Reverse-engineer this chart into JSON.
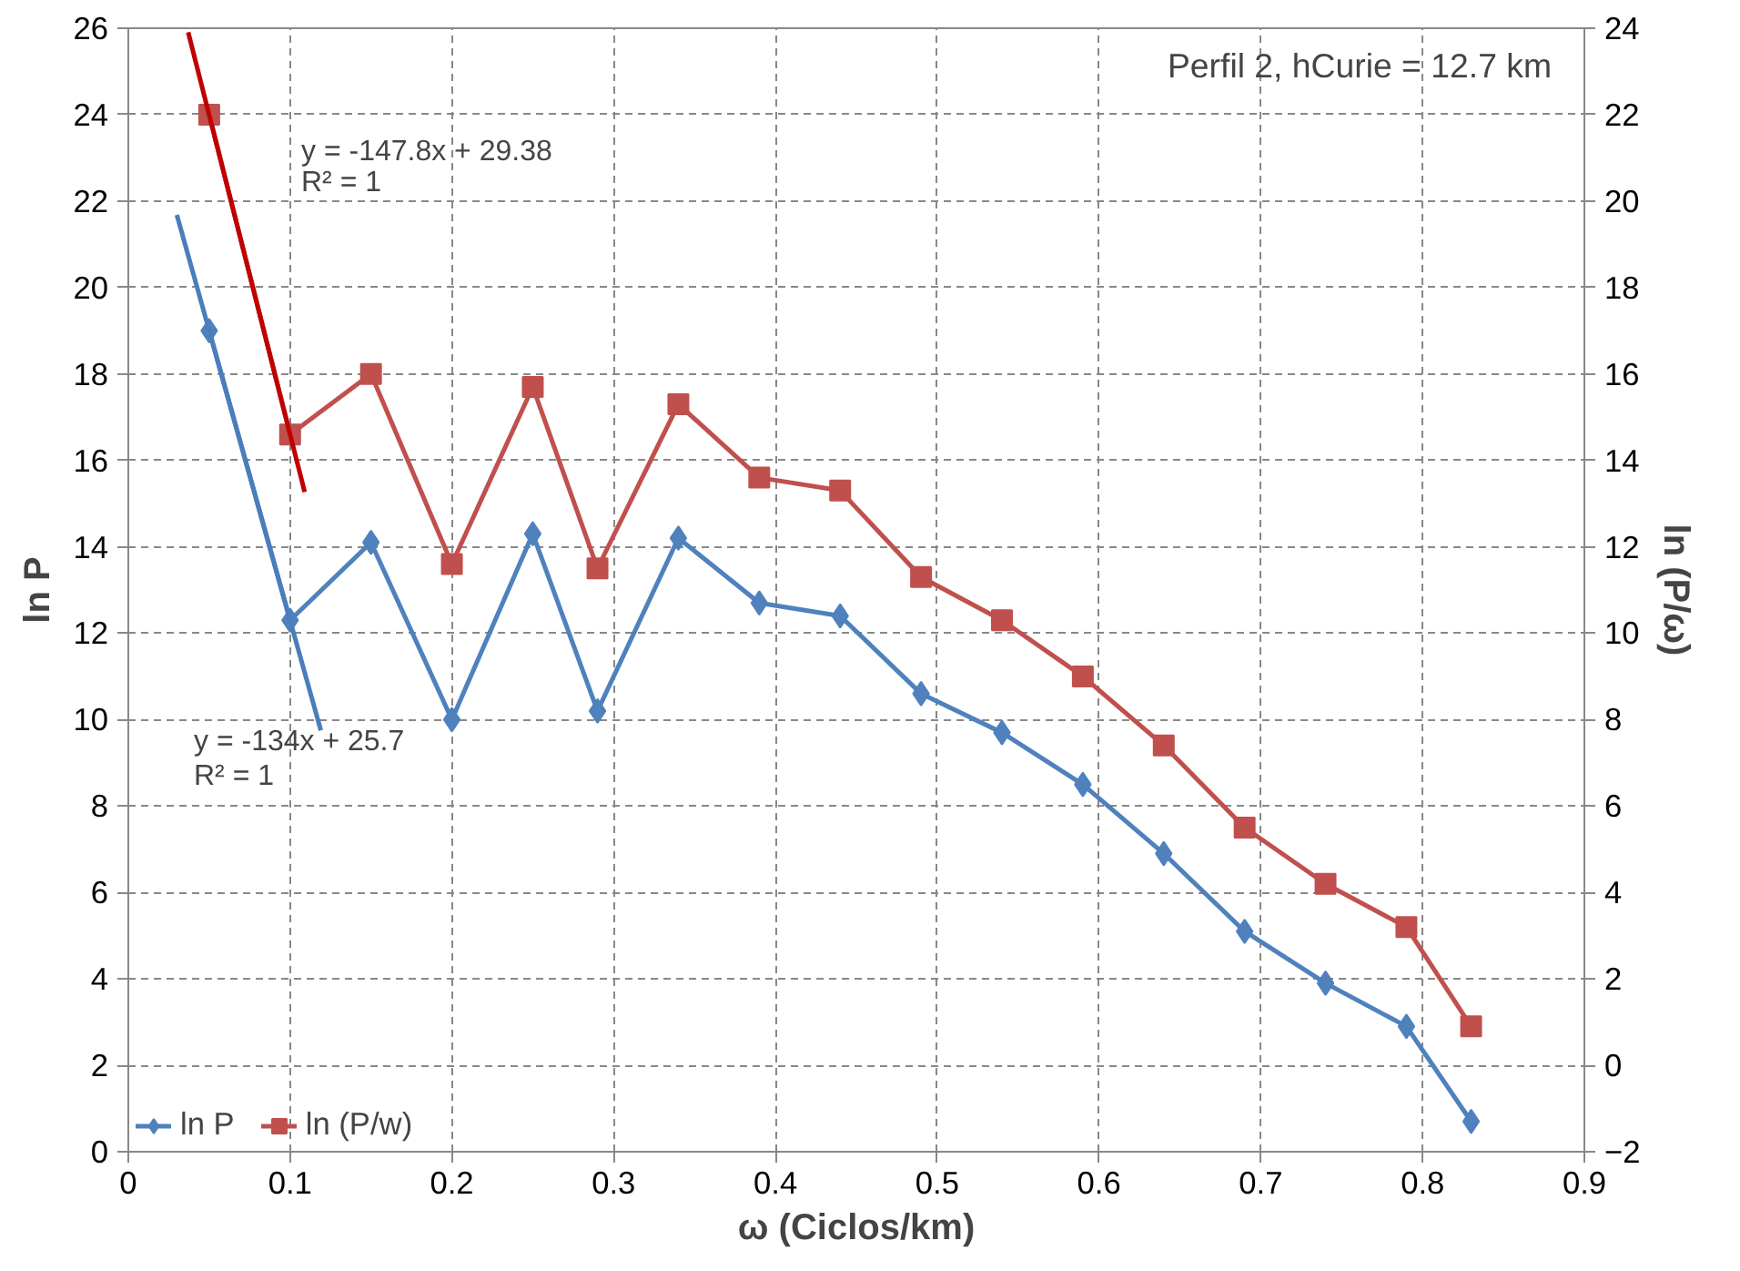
{
  "chart_data": {
    "type": "line",
    "xlabel": "ω (Ciclos/km)",
    "ylabel": "ln P",
    "y2label": "ln (P/ω)",
    "x": [
      0.05,
      0.1,
      0.15,
      0.2,
      0.25,
      0.29,
      0.34,
      0.39,
      0.44,
      0.49,
      0.54,
      0.59,
      0.64,
      0.69,
      0.74,
      0.79,
      0.83
    ],
    "series": [
      {
        "name": "ln P",
        "color": "#4f81bd",
        "marker": "diamond",
        "values": [
          19.0,
          12.3,
          14.1,
          10.0,
          14.3,
          10.2,
          14.2,
          12.7,
          12.4,
          10.6,
          9.7,
          8.5,
          6.9,
          5.1,
          3.9,
          2.9,
          0.7
        ]
      },
      {
        "name": "ln (P/w)",
        "color": "#c0504d",
        "marker": "square",
        "axis": "y2",
        "values": [
          22.0,
          14.6,
          16.0,
          11.6,
          15.7,
          11.5,
          15.3,
          13.6,
          13.3,
          11.3,
          10.3,
          9.0,
          7.4,
          5.5,
          4.2,
          3.2,
          0.9
        ]
      },
      {
        "type": "line",
        "color": "#4a7ebb",
        "x": [
          0.03,
          0.119
        ],
        "values": [
          21.68,
          9.75
        ]
      },
      {
        "type": "line",
        "color": "#c00000",
        "axis": "y2",
        "x": [
          0.037,
          0.109
        ],
        "values": [
          23.91,
          13.27
        ]
      }
    ],
    "xlim": [
      0,
      0.9
    ],
    "xticks": [
      0,
      0.1,
      0.2,
      0.3,
      0.4,
      0.5,
      0.6,
      0.7,
      0.8,
      0.9
    ],
    "ylim": [
      0,
      26
    ],
    "yticks": [
      0,
      2,
      4,
      6,
      8,
      10,
      12,
      14,
      16,
      18,
      20,
      22,
      24,
      26
    ],
    "y2lim": [
      -2,
      24
    ],
    "y2ticks": [
      -2,
      0,
      2,
      4,
      6,
      8,
      10,
      12,
      14,
      16,
      18,
      20,
      22,
      24
    ],
    "annotations": [
      "Perfil 2, hCurie = 12.7 km",
      "y = -147.8x  + 29.38",
      "R² = 1",
      "y = -134x  + 25.7",
      "R² = 1"
    ],
    "grid": true,
    "legend": "bottom left",
    "line_style": "solid"
  }
}
